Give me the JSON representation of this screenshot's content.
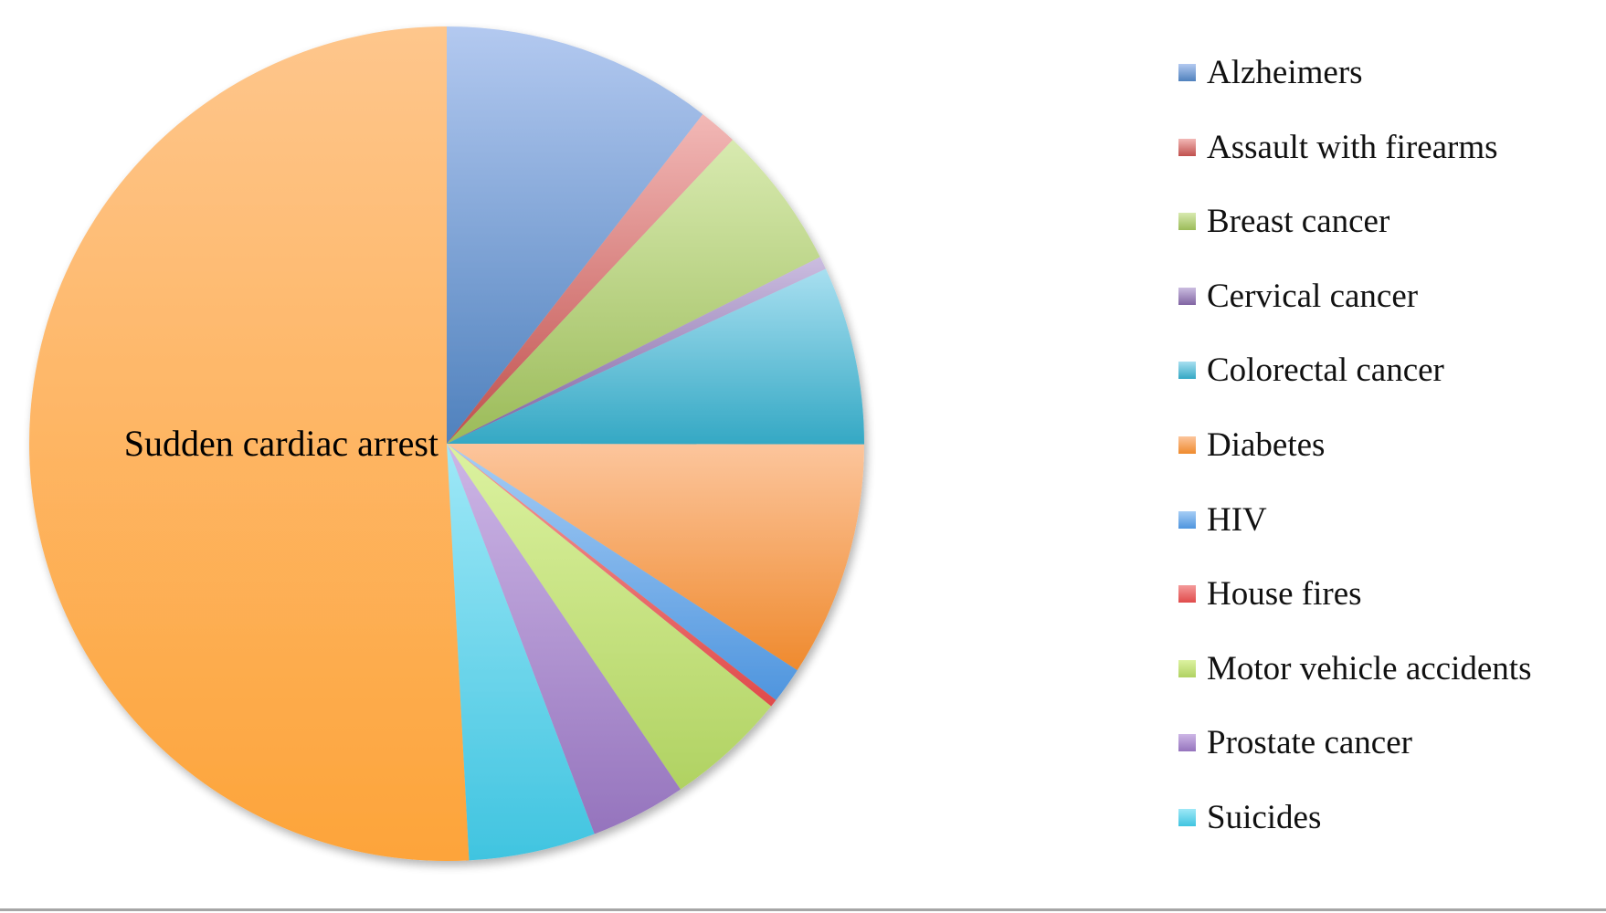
{
  "chart_data": {
    "type": "pie",
    "title": "",
    "unit": "percent of total (estimated)",
    "slices": [
      {
        "name": "Alzheimers",
        "value": 10.5,
        "color": "#4f81bd",
        "light": "#b3c9f0"
      },
      {
        "name": "Assault with firearms",
        "value": 1.5,
        "color": "#c0504d",
        "light": "#f2b8b6"
      },
      {
        "name": "Breast cancer",
        "value": 5.6,
        "color": "#9bbb59",
        "light": "#d8eab0"
      },
      {
        "name": "Cervical cancer",
        "value": 0.5,
        "color": "#8064a2",
        "light": "#cbbde0"
      },
      {
        "name": "Colorectal cancer",
        "value": 6.9,
        "color": "#34a8c4",
        "light": "#a8dff0"
      },
      {
        "name": "Diabetes",
        "value": 9.1,
        "color": "#ef8a2e",
        "light": "#fcc59c"
      },
      {
        "name": "HIV",
        "value": 1.4,
        "color": "#4f95de",
        "light": "#a6cdf5"
      },
      {
        "name": "House fires",
        "value": 0.3,
        "color": "#e04b4b",
        "light": "#f49a9a"
      },
      {
        "name": "Motor vehicle accidents",
        "value": 4.7,
        "color": "#b0d262",
        "light": "#dcf2a0"
      },
      {
        "name": "Prostate cancer",
        "value": 3.7,
        "color": "#9574bd",
        "light": "#cdb6e6"
      },
      {
        "name": "Suicides",
        "value": 4.9,
        "color": "#40c4e0",
        "light": "#9fe8f7"
      },
      {
        "name": "Sudden cardiac arrest",
        "value": 50.8,
        "color": "#fda43a",
        "light": "#fec68c"
      }
    ],
    "data_labels": [
      "Sudden cardiac arrest"
    ],
    "legend": {
      "placement": "right",
      "entries": [
        "Alzheimers",
        "Assault with firearms",
        "Breast cancer",
        "Cervical cancer",
        "Colorectal cancer",
        "Diabetes",
        "HIV",
        "House fires",
        "Motor vehicle accidents",
        "Prostate cancer",
        "Suicides"
      ]
    }
  }
}
